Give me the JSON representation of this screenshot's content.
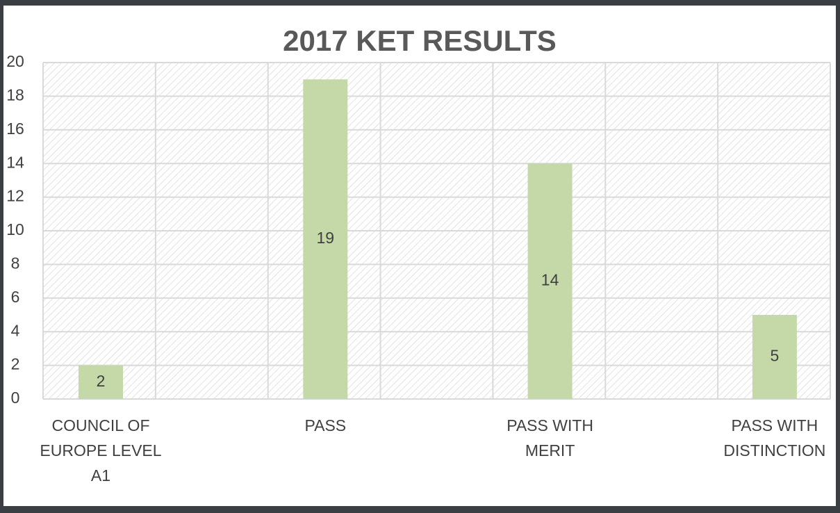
{
  "chart_data": {
    "type": "bar",
    "title": "2017 KET RESULTS",
    "categories": [
      "COUNCIL OF EUROPE LEVEL A1",
      "PASS",
      "PASS WITH MERIT",
      "PASS WITH DISTINCTION"
    ],
    "values": [
      2,
      19,
      14,
      5
    ],
    "color": "#c5d8a8",
    "ylim": [
      0,
      20
    ],
    "yticks": [
      0,
      2,
      4,
      6,
      8,
      10,
      12,
      14,
      16,
      18,
      20
    ],
    "grid": true
  }
}
